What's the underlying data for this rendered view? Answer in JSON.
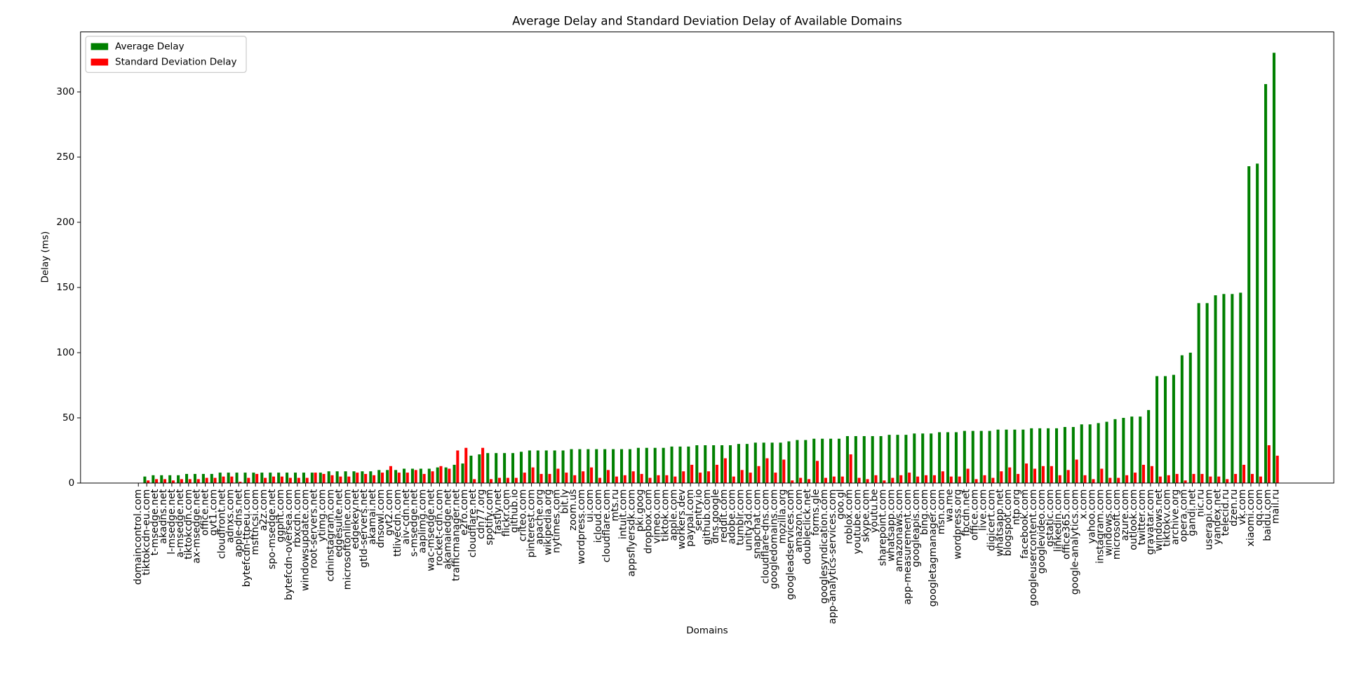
{
  "chart_data": {
    "type": "bar",
    "title": "Average Delay and Standard Deviation Delay of Available Domains",
    "x_label": "Domains",
    "y_label": "Delay (ms)",
    "categories": [
      "domaincontrol.com",
      "tiktokcdn-eu.com",
      "t-msedge.net",
      "akadns.net",
      "l-msedge.net",
      "a-msedge.net",
      "tiktokcdn.com",
      "ax-msedge.net",
      "office.net",
      "gvt1.com",
      "cloudfront.net",
      "adnxs.com",
      "apple-dns.net",
      "bytefcdn-ttpeu.com",
      "msftncsi.com",
      "a2z.com",
      "spo-msedge.net",
      "ggpht.com",
      "bytefcdn-oversea.com",
      "rbxcdn.com",
      "windowsupdate.com",
      "root-servers.net",
      "ytimg.com",
      "cdninstagram.com",
      "edgesuite.net",
      "microsoftonline.com",
      "edgekey.net",
      "gtld-servers.net",
      "akamai.net",
      "dnsowl.com",
      "gvt2.com",
      "ttlivecdn.com",
      "aiv-cdn.net",
      "s-msedge.net",
      "aaplimg.com",
      "wac-msedge.net",
      "rocket-cdn.com",
      "akamaiedge.net",
      "trafficmanager.net",
      "e2ro.com",
      "cloudflare.net",
      "cdn77.org",
      "spotify.com",
      "fastly.net",
      "flickr.com",
      "github.io",
      "criteo.com",
      "pinterest.com",
      "apache.org",
      "wikipedia.org",
      "nytimes.com",
      "bit.ly",
      "zoom.us",
      "wordpress.com",
      "ui.com",
      "icloud.com",
      "cloudflare.com",
      "mts.ru",
      "intuit.com",
      "appsflyersdk.com",
      "pki.goog",
      "dropbox.com",
      "vimeo.com",
      "tiktok.com",
      "apple.com",
      "workers.dev",
      "paypal.com",
      "sentry.io",
      "github.com",
      "dns.google",
      "reddit.com",
      "adobe.com",
      "tumblr.com",
      "unity3d.com",
      "snapchat.com",
      "cloudflare-dns.com",
      "googledomains.com",
      "mozilla.org",
      "googleadservices.com",
      "amazon.com",
      "doubleclick.net",
      "forms.gle",
      "googlesyndication.com",
      "app-analytics-services.com",
      "goo.gl",
      "roblox.com",
      "youtube.com",
      "skype.com",
      "youtu.be",
      "sharepoint.com",
      "whatsapp.com",
      "amazonaws.com",
      "app-measurement.com",
      "googleapis.com",
      "bing.com",
      "googletagmanager.com",
      "msn.com",
      "wa.me",
      "wordpress.org",
      "fbcdn.net",
      "office.com",
      "live.com",
      "digicert.com",
      "whatsapp.net",
      "blogspot.com",
      "ntp.org",
      "facebook.com",
      "googleusercontent.com",
      "googlevideo.com",
      "gstatic.com",
      "linkedin.com",
      "office365.com",
      "google-analytics.com",
      "x.com",
      "yahoo.com",
      "instagram.com",
      "windows.com",
      "microsoft.com",
      "azure.com",
      "outlook.com",
      "twitter.com",
      "gravatar.com",
      "windows.net",
      "tiktokv.com",
      "archive.org",
      "opera.com",
      "gandi.net",
      "nic.ru",
      "userapi.com",
      "yandex.net",
      "telecid.ru",
      "dzen.ru",
      "vk.com",
      "xiaomi.com",
      "qq.com",
      "baidu.com",
      "mail.ru"
    ],
    "series": [
      {
        "name": "Average Delay",
        "color": "#008000",
        "values": [
          0,
          5,
          6,
          6,
          6,
          6,
          7,
          7,
          7,
          7,
          8,
          8,
          8,
          8,
          8,
          8,
          8,
          8,
          8,
          8,
          8,
          8,
          8,
          9,
          9,
          9,
          9,
          9,
          9,
          10,
          10,
          10,
          11,
          11,
          11,
          11,
          12,
          12,
          14,
          15,
          21,
          22,
          23,
          23,
          23,
          23,
          24,
          25,
          25,
          25,
          25,
          25,
          26,
          26,
          26,
          26,
          26,
          26,
          26,
          26,
          27,
          27,
          27,
          27,
          28,
          28,
          28,
          29,
          29,
          29,
          29,
          29,
          30,
          30,
          31,
          31,
          31,
          31,
          32,
          33,
          33,
          34,
          34,
          34,
          34,
          36,
          36,
          36,
          36,
          36,
          37,
          37,
          37,
          38,
          38,
          38,
          39,
          39,
          39,
          40,
          40,
          40,
          40,
          41,
          41,
          41,
          41,
          42,
          42,
          42,
          42,
          43,
          43,
          45,
          45,
          46,
          47,
          49,
          50,
          51,
          51,
          56,
          82,
          82,
          83,
          98,
          100,
          138,
          138,
          144,
          145,
          145,
          146,
          243,
          245,
          306,
          330
        ]
      },
      {
        "name": "Standard Deviation Delay",
        "color": "#ff0000",
        "values": [
          0,
          2,
          3,
          3,
          2,
          3,
          3,
          3,
          4,
          4,
          5,
          5,
          1,
          4,
          7,
          4,
          5,
          5,
          4,
          4,
          4,
          8,
          7,
          6,
          5,
          5,
          8,
          7,
          6,
          8,
          13,
          8,
          8,
          10,
          7,
          9,
          13,
          11,
          25,
          27,
          3,
          27,
          3,
          4,
          4,
          4,
          8,
          12,
          7,
          7,
          11,
          8,
          6,
          9,
          12,
          4,
          10,
          5,
          6,
          9,
          7,
          4,
          6,
          6,
          5,
          9,
          14,
          8,
          9,
          14,
          19,
          5,
          10,
          8,
          13,
          19,
          8,
          18,
          2,
          4,
          3,
          17,
          4,
          5,
          5,
          22,
          4,
          3,
          6,
          2,
          4,
          6,
          8,
          5,
          6,
          6,
          9,
          5,
          5,
          11,
          3,
          6,
          4,
          9,
          12,
          7,
          15,
          11,
          13,
          13,
          6,
          10,
          18,
          6,
          3,
          11,
          4,
          4,
          6,
          8,
          14,
          13,
          5,
          6,
          7,
          2,
          7,
          7,
          5,
          5,
          3,
          7,
          14,
          7,
          5,
          29,
          21
        ]
      }
    ],
    "ylim": [
      0,
      346
    ],
    "yticks": [
      0,
      50,
      100,
      150,
      200,
      250,
      300
    ],
    "legend": "upper left"
  }
}
